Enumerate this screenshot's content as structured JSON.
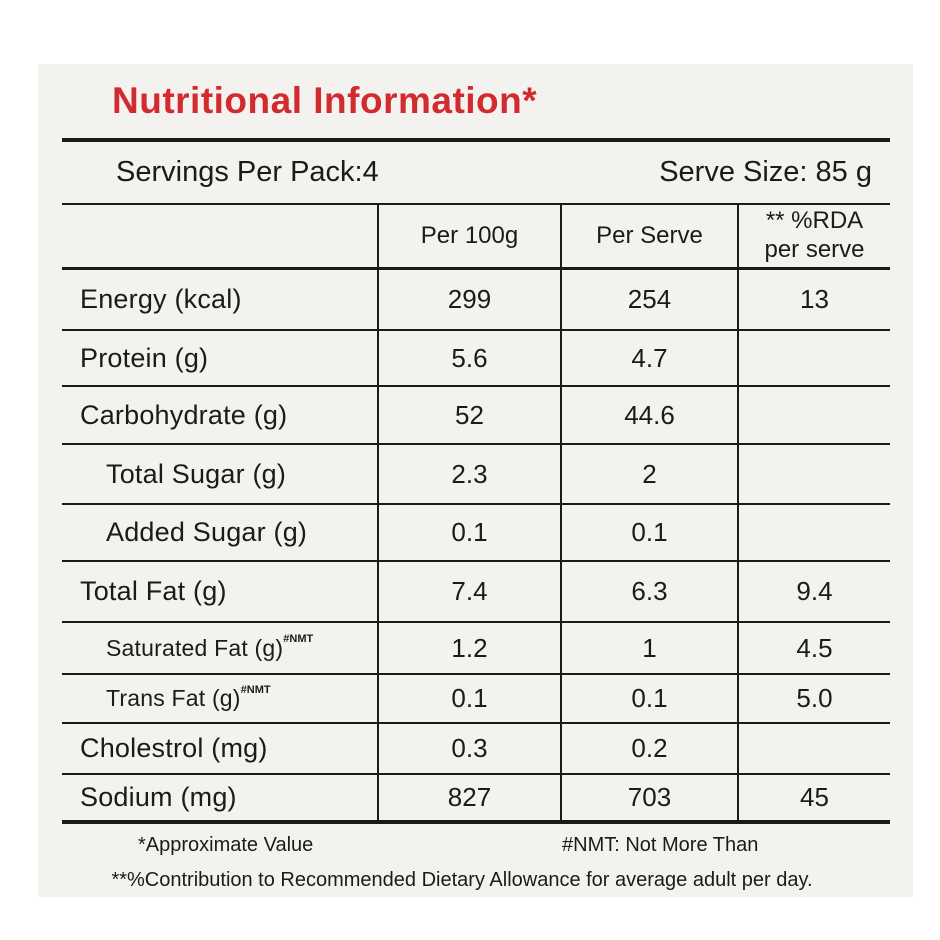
{
  "title": "Nutritional Information*",
  "accent_color": "#d22b2f",
  "panel_color": "#f3f2ef",
  "serving_info": {
    "servings_per_pack": "Servings Per Pack:4",
    "serve_size": "Serve Size: 85 g"
  },
  "table": {
    "headers": {
      "per_100g": "Per 100g",
      "per_serve": "Per Serve",
      "rda_line1": "** %RDA",
      "rda_line2": "per serve"
    },
    "rows": [
      {
        "label": "Energy (kcal)",
        "sup": "",
        "indent": false,
        "small": false,
        "per_100g": "299",
        "per_serve": "254",
        "rda_per_serve": "13"
      },
      {
        "label": "Protein (g)",
        "sup": "",
        "indent": false,
        "small": false,
        "per_100g": "5.6",
        "per_serve": "4.7",
        "rda_per_serve": ""
      },
      {
        "label": "Carbohydrate (g)",
        "sup": "",
        "indent": false,
        "small": false,
        "per_100g": "52",
        "per_serve": "44.6",
        "rda_per_serve": ""
      },
      {
        "label": "Total Sugar (g)",
        "sup": "",
        "indent": true,
        "small": false,
        "per_100g": "2.3",
        "per_serve": "2",
        "rda_per_serve": ""
      },
      {
        "label": "Added Sugar (g)",
        "sup": "",
        "indent": true,
        "small": false,
        "per_100g": "0.1",
        "per_serve": "0.1",
        "rda_per_serve": ""
      },
      {
        "label": "Total Fat (g)",
        "sup": "",
        "indent": false,
        "small": false,
        "per_100g": "7.4",
        "per_serve": "6.3",
        "rda_per_serve": "9.4"
      },
      {
        "label": "Saturated Fat (g)",
        "sup": "#NMT",
        "indent": true,
        "small": true,
        "per_100g": "1.2",
        "per_serve": "1",
        "rda_per_serve": "4.5"
      },
      {
        "label": "Trans Fat (g)",
        "sup": "#NMT",
        "indent": true,
        "small": true,
        "per_100g": "0.1",
        "per_serve": "0.1",
        "rda_per_serve": "5.0"
      },
      {
        "label": "Cholestrol (mg)",
        "sup": "",
        "indent": false,
        "small": false,
        "per_100g": "0.3",
        "per_serve": "0.2",
        "rda_per_serve": ""
      },
      {
        "label": "Sodium (mg)",
        "sup": "",
        "indent": false,
        "small": false,
        "per_100g": "827",
        "per_serve": "703",
        "rda_per_serve": "45"
      }
    ]
  },
  "footnotes": {
    "approx": "*Approximate Value",
    "nmt": "#NMT: Not More Than",
    "rda": "**%Contribution to Recommended Dietary Allowance for average adult per day."
  }
}
